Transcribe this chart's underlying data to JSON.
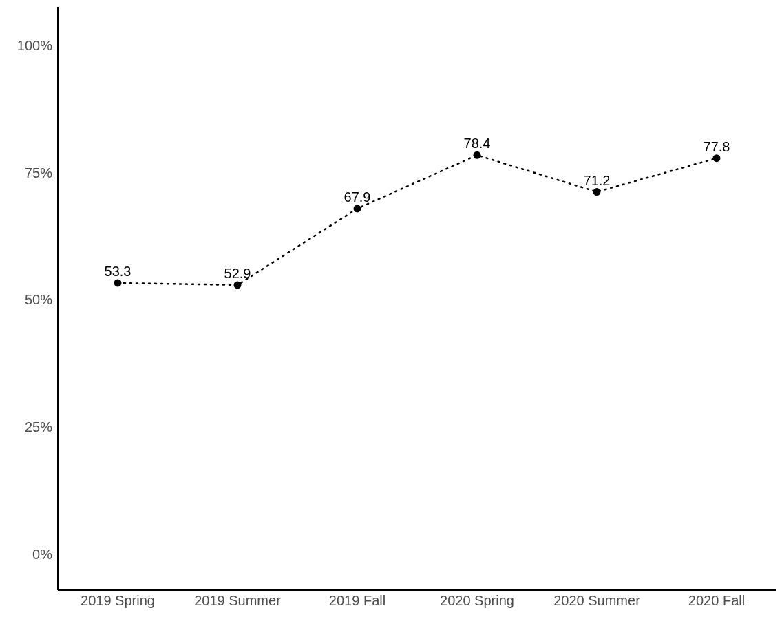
{
  "chart_data": {
    "type": "line",
    "categories": [
      "2019 Spring",
      "2019 Summer",
      "2019 Fall",
      "2020 Spring",
      "2020 Summer",
      "2020 Fall"
    ],
    "series": [
      {
        "color": "#000000",
        "values": [
          53.3,
          52.9,
          67.9,
          78.4,
          71.2,
          77.8
        ]
      }
    ],
    "ylim": [
      -7,
      107.5
    ],
    "yticks": [
      {
        "value": 0,
        "label": "0%"
      },
      {
        "value": 25,
        "label": "25%"
      },
      {
        "value": 50,
        "label": "50%"
      },
      {
        "value": 75,
        "label": "75%"
      },
      {
        "value": 100,
        "label": "100%"
      }
    ],
    "grid": false,
    "legend": false,
    "marker": "circle",
    "line_style": "dotted",
    "data_labels": true
  }
}
